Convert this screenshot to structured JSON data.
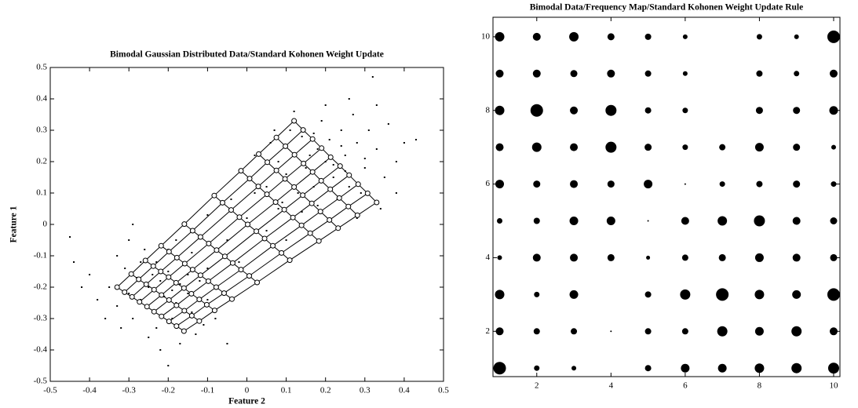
{
  "chart_data": [
    {
      "type": "scatter",
      "title": "Bimodal Gaussian Distributed Data/Standard Kohonen Weight Update",
      "xlabel": "Feature 2",
      "ylabel": "Feature 1",
      "xlim": [
        -0.5,
        0.5
      ],
      "ylim": [
        -0.5,
        0.5
      ],
      "xticks": [
        -0.5,
        -0.4,
        -0.3,
        -0.2,
        -0.1,
        0,
        0.1,
        0.2,
        0.3,
        0.4,
        0.5
      ],
      "yticks": [
        -0.5,
        -0.4,
        -0.3,
        -0.2,
        -0.1,
        0,
        0.1,
        0.2,
        0.3,
        0.4,
        0.5
      ],
      "color": "#000000",
      "x": [
        -0.25,
        -0.22,
        -0.3,
        -0.18,
        -0.2,
        -0.27,
        -0.15,
        -0.33,
        -0.24,
        -0.19,
        -0.28,
        -0.21,
        -0.35,
        -0.12,
        -0.16,
        -0.26,
        -0.31,
        -0.14,
        -0.23,
        -0.38,
        -0.29,
        -0.17,
        -0.1,
        -0.2,
        -0.33,
        -0.4,
        -0.13,
        -0.22,
        -0.08,
        -0.3,
        -0.45,
        -0.42,
        -0.25,
        -0.1,
        -0.18,
        -0.36,
        -0.27,
        -0.24,
        -0.19,
        -0.15,
        -0.11,
        -0.06,
        -0.29,
        -0.23,
        -0.32,
        -0.17,
        -0.2,
        -0.44,
        -0.05,
        -0.14,
        0.2,
        0.18,
        0.25,
        0.22,
        0.15,
        0.28,
        0.12,
        0.3,
        0.24,
        0.17,
        0.1,
        0.26,
        0.33,
        0.21,
        0.14,
        0.08,
        0.29,
        0.35,
        0.19,
        0.23,
        0.31,
        0.13,
        0.06,
        0.27,
        0.38,
        0.16,
        0.22,
        0.25,
        0.11,
        0.34,
        0.4,
        0.05,
        0.2,
        0.28,
        0.36,
        0.09,
        0.17,
        0.24,
        0.3,
        0.43,
        0.32,
        0.02,
        0.14,
        0.21,
        0.38,
        0.12,
        0.26,
        0.18,
        0.33,
        0.07,
        -0.05,
        0.0,
        0.05,
        -0.1,
        0.08,
        -0.02,
        0.02,
        -0.08,
        0.1,
        -0.04
      ],
      "y": [
        -0.2,
        -0.18,
        -0.22,
        -0.25,
        -0.15,
        -0.12,
        -0.22,
        -0.26,
        -0.28,
        -0.3,
        -0.17,
        -0.23,
        -0.2,
        -0.18,
        -0.12,
        -0.08,
        -0.14,
        -0.28,
        -0.33,
        -0.24,
        -0.3,
        -0.19,
        -0.24,
        -0.08,
        -0.1,
        -0.16,
        -0.35,
        -0.4,
        -0.3,
        -0.05,
        -0.04,
        -0.2,
        -0.36,
        -0.14,
        -0.05,
        -0.3,
        -0.24,
        -0.16,
        -0.21,
        -0.16,
        -0.32,
        -0.22,
        0.0,
        -0.12,
        -0.33,
        -0.38,
        -0.45,
        -0.12,
        -0.38,
        -0.09,
        0.2,
        0.24,
        0.22,
        0.15,
        0.18,
        0.26,
        0.22,
        0.18,
        0.3,
        0.12,
        0.16,
        0.12,
        0.24,
        0.27,
        0.28,
        0.2,
        0.1,
        0.15,
        0.33,
        0.08,
        0.3,
        0.1,
        0.26,
        0.35,
        0.2,
        0.22,
        0.19,
        0.17,
        0.3,
        0.05,
        0.26,
        0.12,
        0.38,
        0.02,
        0.32,
        0.07,
        0.29,
        0.25,
        0.21,
        0.27,
        0.47,
        0.22,
        0.04,
        0.11,
        0.1,
        0.36,
        0.4,
        0.06,
        0.38,
        0.3,
        -0.05,
        0.02,
        -0.02,
        0.03,
        0.05,
        -0.12,
        0.1,
        -0.08,
        -0.05,
        0.08
      ],
      "nodes_x": [
        [
          -0.33,
          -0.311,
          -0.292,
          -0.273,
          -0.254,
          -0.236,
          -0.217,
          -0.198,
          -0.179,
          -0.16
        ],
        [
          -0.294,
          -0.275,
          -0.256,
          -0.236,
          -0.217,
          -0.198,
          -0.179,
          -0.159,
          -0.14,
          -0.121
        ],
        [
          -0.258,
          -0.238,
          -0.219,
          -0.199,
          -0.18,
          -0.16,
          -0.141,
          -0.121,
          -0.102,
          -0.082
        ],
        [
          -0.218,
          -0.198,
          -0.178,
          -0.158,
          -0.138,
          -0.118,
          -0.098,
          -0.078,
          -0.058,
          -0.038
        ],
        [
          -0.159,
          -0.138,
          -0.118,
          -0.097,
          -0.077,
          -0.056,
          -0.036,
          -0.015,
          0.006,
          0.026
        ],
        [
          -0.083,
          -0.062,
          -0.04,
          -0.019,
          0.002,
          0.024,
          0.045,
          0.066,
          0.088,
          0.109
        ],
        [
          -0.015,
          0.007,
          0.029,
          0.051,
          0.073,
          0.095,
          0.117,
          0.139,
          0.161,
          0.183
        ],
        [
          0.03,
          0.052,
          0.075,
          0.097,
          0.12,
          0.142,
          0.165,
          0.187,
          0.21,
          0.232
        ],
        [
          0.075,
          0.098,
          0.121,
          0.144,
          0.167,
          0.189,
          0.212,
          0.235,
          0.258,
          0.281
        ],
        [
          0.12,
          0.143,
          0.167,
          0.19,
          0.213,
          0.237,
          0.26,
          0.283,
          0.307,
          0.33
        ]
      ],
      "nodes_y": [
        [
          -0.2,
          -0.216,
          -0.231,
          -0.247,
          -0.262,
          -0.278,
          -0.293,
          -0.309,
          -0.324,
          -0.34
        ],
        [
          -0.158,
          -0.175,
          -0.191,
          -0.208,
          -0.225,
          -0.241,
          -0.258,
          -0.275,
          -0.291,
          -0.308
        ],
        [
          -0.115,
          -0.133,
          -0.15,
          -0.168,
          -0.186,
          -0.203,
          -0.221,
          -0.239,
          -0.256,
          -0.274
        ],
        [
          -0.068,
          -0.087,
          -0.106,
          -0.125,
          -0.144,
          -0.162,
          -0.181,
          -0.2,
          -0.219,
          -0.238
        ],
        [
          0.001,
          -0.02,
          -0.04,
          -0.061,
          -0.082,
          -0.102,
          -0.123,
          -0.144,
          -0.164,
          -0.185
        ],
        [
          0.092,
          0.069,
          0.046,
          0.023,
          0.0,
          -0.022,
          -0.045,
          -0.068,
          -0.091,
          -0.114
        ],
        [
          0.171,
          0.146,
          0.121,
          0.096,
          0.071,
          0.047,
          0.022,
          -0.003,
          -0.028,
          -0.053
        ],
        [
          0.224,
          0.198,
          0.172,
          0.145,
          0.119,
          0.093,
          0.067,
          0.041,
          0.014,
          -0.012
        ],
        [
          0.277,
          0.249,
          0.222,
          0.194,
          0.167,
          0.139,
          0.112,
          0.084,
          0.057,
          0.029
        ],
        [
          0.33,
          0.301,
          0.272,
          0.243,
          0.214,
          0.186,
          0.157,
          0.128,
          0.099,
          0.07
        ]
      ]
    },
    {
      "type": "bubble",
      "title": "Bimodal Data/Frequency Map/Standard Kohonen Weight Update Rule",
      "xlim": [
        0.82,
        10.17
      ],
      "ylim": [
        0.77,
        10.53
      ],
      "xticks": [
        2,
        4,
        6,
        8,
        10
      ],
      "yticks": [
        2,
        4,
        6,
        8,
        10
      ],
      "color": "#000000",
      "x": [
        1,
        2,
        3,
        4,
        5,
        6,
        7,
        8,
        9,
        10
      ],
      "y": [
        1,
        2,
        3,
        4,
        5,
        6,
        7,
        8,
        9,
        10
      ],
      "sizes": [
        [
          8,
          3.5,
          3,
          0,
          4,
          5.5,
          5.5,
          6,
          6.5,
          7
        ],
        [
          5,
          4,
          4,
          1,
          4,
          4,
          6.5,
          5.5,
          6.5,
          5
        ],
        [
          6,
          3.5,
          5.5,
          0,
          4,
          6.5,
          8,
          6,
          5.5,
          8
        ],
        [
          3,
          5,
          5,
          4.5,
          2.5,
          4,
          4.5,
          5.5,
          5,
          4.5
        ],
        [
          3.5,
          4,
          5.5,
          5.5,
          1,
          5,
          6,
          7,
          5,
          4.5
        ],
        [
          5.5,
          4.5,
          5,
          4.5,
          5.5,
          1,
          3.5,
          4,
          4.5,
          3.5
        ],
        [
          5,
          6,
          5,
          7,
          4.5,
          3.5,
          4,
          5.5,
          4.5,
          3
        ],
        [
          6,
          8,
          5,
          7,
          4,
          3.5,
          0,
          4.5,
          4.5,
          5.5
        ],
        [
          5,
          5,
          4.5,
          5,
          4,
          3,
          0,
          4,
          3.5,
          5
        ],
        [
          6,
          5,
          6,
          4.5,
          4,
          3,
          0,
          3.5,
          3,
          8
        ]
      ]
    }
  ]
}
